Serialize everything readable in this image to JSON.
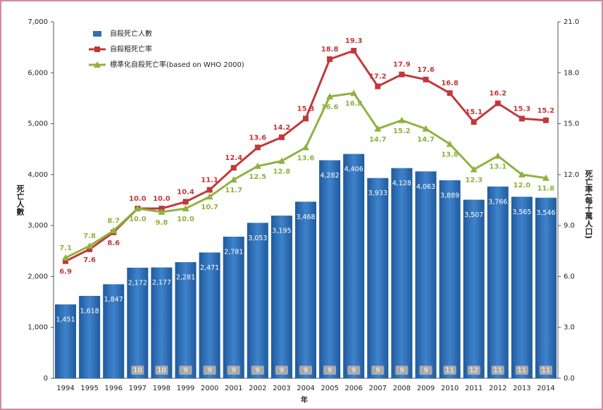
{
  "chart_data": {
    "type": "bar-line",
    "categories": [
      "1994",
      "1995",
      "1996",
      "1997",
      "1998",
      "1999",
      "2000",
      "2001",
      "2002",
      "2003",
      "2004",
      "2005",
      "2006",
      "2007",
      "2008",
      "2009",
      "2010",
      "2011",
      "2012",
      "2013",
      "2014"
    ],
    "series": [
      {
        "name": "自殺死亡人數",
        "color": "#2f6fb4",
        "kind": "bar",
        "values": [
          1451,
          1618,
          1847,
          2172,
          2177,
          2281,
          2471,
          2781,
          3053,
          3195,
          3468,
          4282,
          4406,
          3933,
          4128,
          4063,
          3889,
          3507,
          3766,
          3565,
          3546
        ],
        "value_labels": [
          "1,451",
          "1,618",
          "1,847",
          "2,172",
          "2,177",
          "2,281",
          "2,471",
          "2,781",
          "3,053",
          "3,195",
          "3,468",
          "4,282",
          "4,406",
          "3,933",
          "4,128",
          "4,063",
          "3,889",
          "3,507",
          "3,766",
          "3,565",
          "3,546"
        ]
      },
      {
        "name": "自殺粗死亡率",
        "color": "#c0393b",
        "kind": "line",
        "axis": "y2",
        "label_side": "above",
        "values": [
          6.9,
          7.6,
          8.6,
          10.0,
          10.0,
          10.4,
          11.1,
          12.4,
          13.6,
          14.2,
          15.3,
          18.8,
          19.3,
          17.2,
          17.9,
          17.6,
          16.8,
          15.1,
          16.2,
          15.3,
          15.2
        ],
        "value_labels": [
          "6.9",
          "7.6",
          "8.6",
          "10.0",
          "10.0",
          "10.4",
          "11.1",
          "12.4",
          "13.6",
          "14.2",
          "15.3",
          "18.8",
          "19.3",
          "17.2",
          "17.9",
          "17.6",
          "16.8",
          "15.1",
          "16.2",
          "15.3",
          "15.2"
        ]
      },
      {
        "name": "標準化自殺死亡率(based on WHO 2000)",
        "color": "#8fb23e",
        "kind": "line",
        "axis": "y2",
        "label_side": "below",
        "values": [
          7.1,
          7.8,
          8.7,
          10.0,
          9.8,
          10.0,
          10.7,
          11.7,
          12.5,
          12.8,
          13.6,
          16.6,
          16.8,
          14.7,
          15.2,
          14.7,
          13.8,
          12.3,
          13.1,
          12.0,
          11.8
        ],
        "value_labels": [
          "7.1",
          "7.8",
          "8.7",
          "10.0",
          "9.8",
          "10.0",
          "10.7",
          "11.7",
          "12.5",
          "12.8",
          "13.6",
          "16.6",
          "16.8",
          "14.7",
          "15.2",
          "14.7",
          "13.8",
          "12.3",
          "13.1",
          "12.0",
          "11.8"
        ]
      }
    ],
    "rank_labels": [
      null,
      null,
      null,
      "10",
      "10",
      "9",
      "9",
      "9",
      "9",
      "9",
      "9",
      "9",
      "9",
      "9",
      "9",
      "9",
      "11",
      "12",
      "11",
      "11",
      "11"
    ],
    "ylabel": "死亡人數",
    "y2label": "死亡率(每十萬人口)",
    "xlabel": "年",
    "ylim": [
      0,
      7000
    ],
    "yticks": [
      0,
      {
        "value": 1000,
        "label": "1,000"
      },
      {
        "value": 2000,
        "label": "2,000"
      },
      {
        "value": 3000,
        "label": "3,000"
      },
      {
        "value": 4000,
        "label": "4,000"
      },
      {
        "value": 5000,
        "label": "5,000"
      },
      {
        "value": 6000,
        "label": "6,000"
      },
      {
        "value": 7000,
        "label": "7,000"
      }
    ],
    "y2lim": [
      0,
      21
    ],
    "y2ticks": [
      {
        "value": 0,
        "label": "0.0"
      },
      {
        "value": 3,
        "label": "3.0"
      },
      {
        "value": 6,
        "label": "6.0"
      },
      {
        "value": 9,
        "label": "9.0"
      },
      {
        "value": 12,
        "label": "12.0"
      },
      {
        "value": 15,
        "label": "15.0"
      },
      {
        "value": 18,
        "label": "18.0"
      },
      {
        "value": 21,
        "label": "21.0"
      }
    ]
  }
}
